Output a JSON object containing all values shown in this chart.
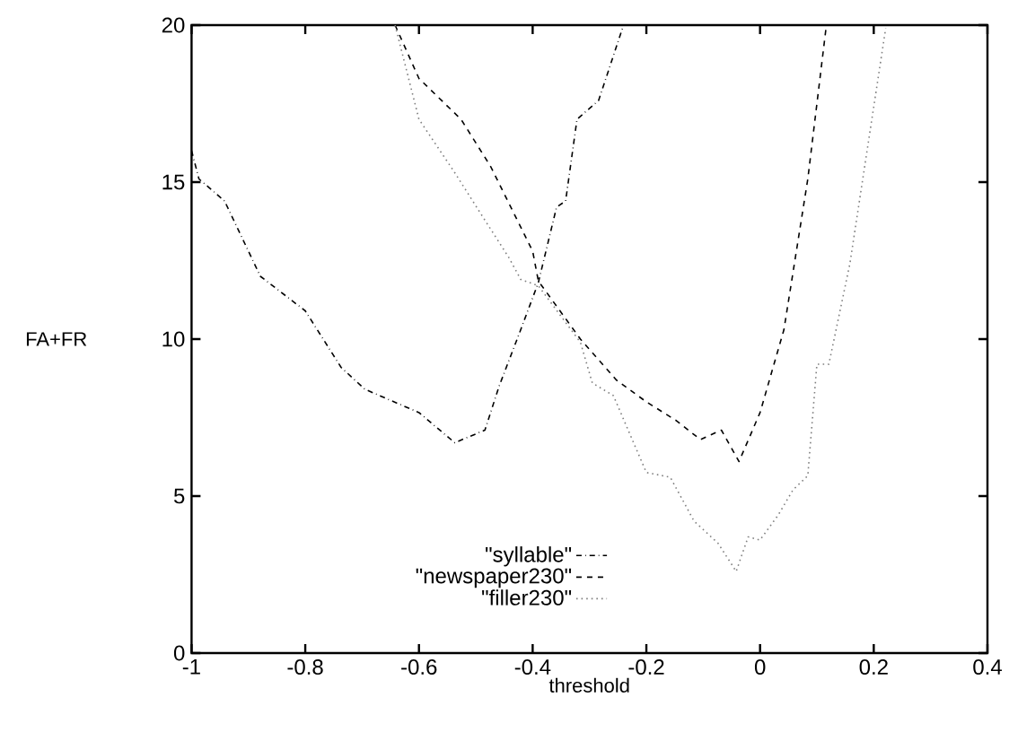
{
  "chart_data": {
    "type": "line",
    "xlabel": "threshold",
    "ylabel": "FA+FR",
    "xlim": [
      -1,
      0.4
    ],
    "ylim": [
      0,
      20
    ],
    "xticks": [
      -1,
      -0.8,
      -0.6,
      -0.4,
      -0.2,
      0,
      0.2,
      0.4
    ],
    "yticks": [
      0,
      5,
      10,
      15,
      20
    ],
    "legend": "bottom",
    "grid": false,
    "marker": "none",
    "series": [
      {
        "name": "\"syllable\"",
        "color": "#000000",
        "line_style": "dashdot",
        "x": [
          -1,
          -0.987,
          -0.942,
          -0.879,
          -0.8,
          -0.737,
          -0.695,
          -0.6,
          -0.537,
          -0.484,
          -0.459,
          -0.421,
          -0.39,
          -0.358,
          -0.342,
          -0.322,
          -0.284,
          -0.242
        ],
        "values": [
          16.0,
          15.1,
          14.4,
          12.0,
          10.9,
          9.1,
          8.4,
          7.66,
          6.7,
          7.1,
          8.5,
          10.3,
          11.8,
          14.2,
          14.4,
          17.0,
          17.6,
          19.9
        ]
      },
      {
        "name": "\"newspaper230\"",
        "color": "#000000",
        "line_style": "dashed",
        "x": [
          -0.642,
          -0.6,
          -0.526,
          -0.474,
          -0.4,
          -0.39,
          -0.316,
          -0.253,
          -0.2,
          -0.147,
          -0.105,
          -0.068,
          -0.037,
          0.0,
          0.042,
          0.084,
          0.116
        ],
        "values": [
          20,
          18.3,
          17.0,
          15.5,
          12.8,
          11.85,
          10.0,
          8.7,
          8.0,
          7.4,
          6.8,
          7.1,
          6.1,
          7.66,
          10.3,
          15.1,
          19.9
        ]
      },
      {
        "name": "\"filler230\"",
        "color": "#7f7f7f",
        "line_style": "dotted",
        "x": [
          -0.642,
          -0.621,
          -0.6,
          -0.537,
          -0.495,
          -0.442,
          -0.421,
          -0.39,
          -0.316,
          -0.295,
          -0.258,
          -0.2,
          -0.158,
          -0.116,
          -0.074,
          -0.042,
          -0.021,
          0.0,
          0.032,
          0.058,
          0.084,
          0.1,
          0.121,
          0.158,
          0.221
        ],
        "values": [
          20,
          18.5,
          17.0,
          15.3,
          14.1,
          12.6,
          11.9,
          11.7,
          9.9,
          8.6,
          8.2,
          5.75,
          5.6,
          4.2,
          3.5,
          2.6,
          3.7,
          3.6,
          4.4,
          5.2,
          5.65,
          9.2,
          9.2,
          12.4,
          19.9
        ]
      }
    ]
  }
}
